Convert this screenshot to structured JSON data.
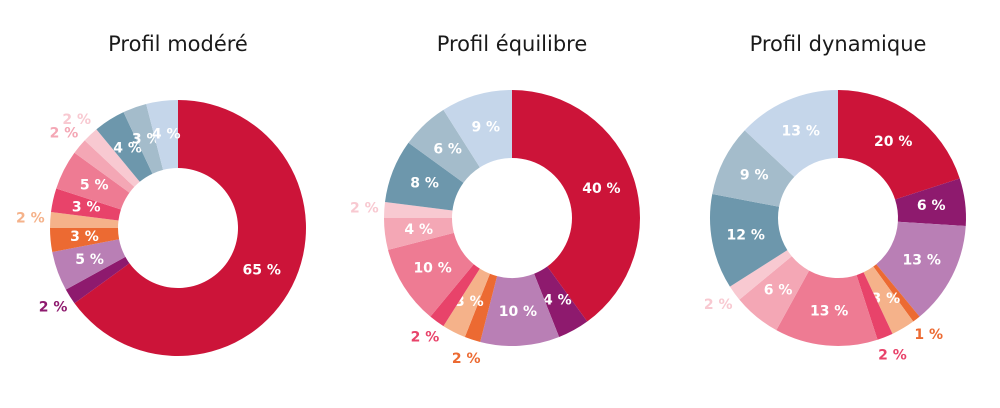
{
  "chart_data": [
    {
      "type": "donut",
      "title": "Profil modéré",
      "values": [
        65,
        2,
        5,
        3,
        2,
        3,
        5,
        2,
        2,
        4,
        3,
        4
      ],
      "value_labels": [
        "65 %",
        "2 %",
        "5 %",
        "3 %",
        "2 %",
        "3 %",
        "5 %",
        "2 %",
        "2 %",
        "4 %",
        "3 %",
        "4 %"
      ],
      "colors": [
        "#cc1439",
        "#8e1a6e",
        "#b97fb5",
        "#ec6a32",
        "#f5b28a",
        "#e8436a",
        "#ee7b93",
        "#f4a7b5",
        "#f8c9d1",
        "#6d97ac",
        "#a4bccb",
        "#c5d6ea"
      ]
    },
    {
      "type": "donut",
      "title": "Profil équilibre",
      "values": [
        40,
        4,
        10,
        2,
        3,
        2,
        10,
        4,
        2,
        8,
        6,
        9
      ],
      "value_labels": [
        "40 %",
        "4 %",
        "10 %",
        "2 %",
        "3 %",
        "2 %",
        "10 %",
        "4 %",
        "2 %",
        "8 %",
        "6 %",
        "9 %"
      ],
      "colors": [
        "#cc1439",
        "#8e1a6e",
        "#b97fb5",
        "#ec6a32",
        "#f5b28a",
        "#e8436a",
        "#ee7b93",
        "#f4a7b5",
        "#f8c9d1",
        "#6d97ac",
        "#a4bccb",
        "#c5d6ea"
      ]
    },
    {
      "type": "donut",
      "title": "Profil dynamique",
      "values": [
        20,
        6,
        13,
        1,
        3,
        2,
        13,
        6,
        2,
        12,
        9,
        13
      ],
      "value_labels": [
        "20 %",
        "6 %",
        "13 %",
        "1 %",
        "3 %",
        "2 %",
        "13 %",
        "6 %",
        "2 %",
        "12 %",
        "9 %",
        "13 %"
      ],
      "colors": [
        "#cc1439",
        "#8e1a6e",
        "#b97fb5",
        "#ec6a32",
        "#f5b28a",
        "#e8436a",
        "#ee7b93",
        "#f4a7b5",
        "#f8c9d1",
        "#6d97ac",
        "#a4bccb",
        "#c5d6ea"
      ]
    }
  ]
}
